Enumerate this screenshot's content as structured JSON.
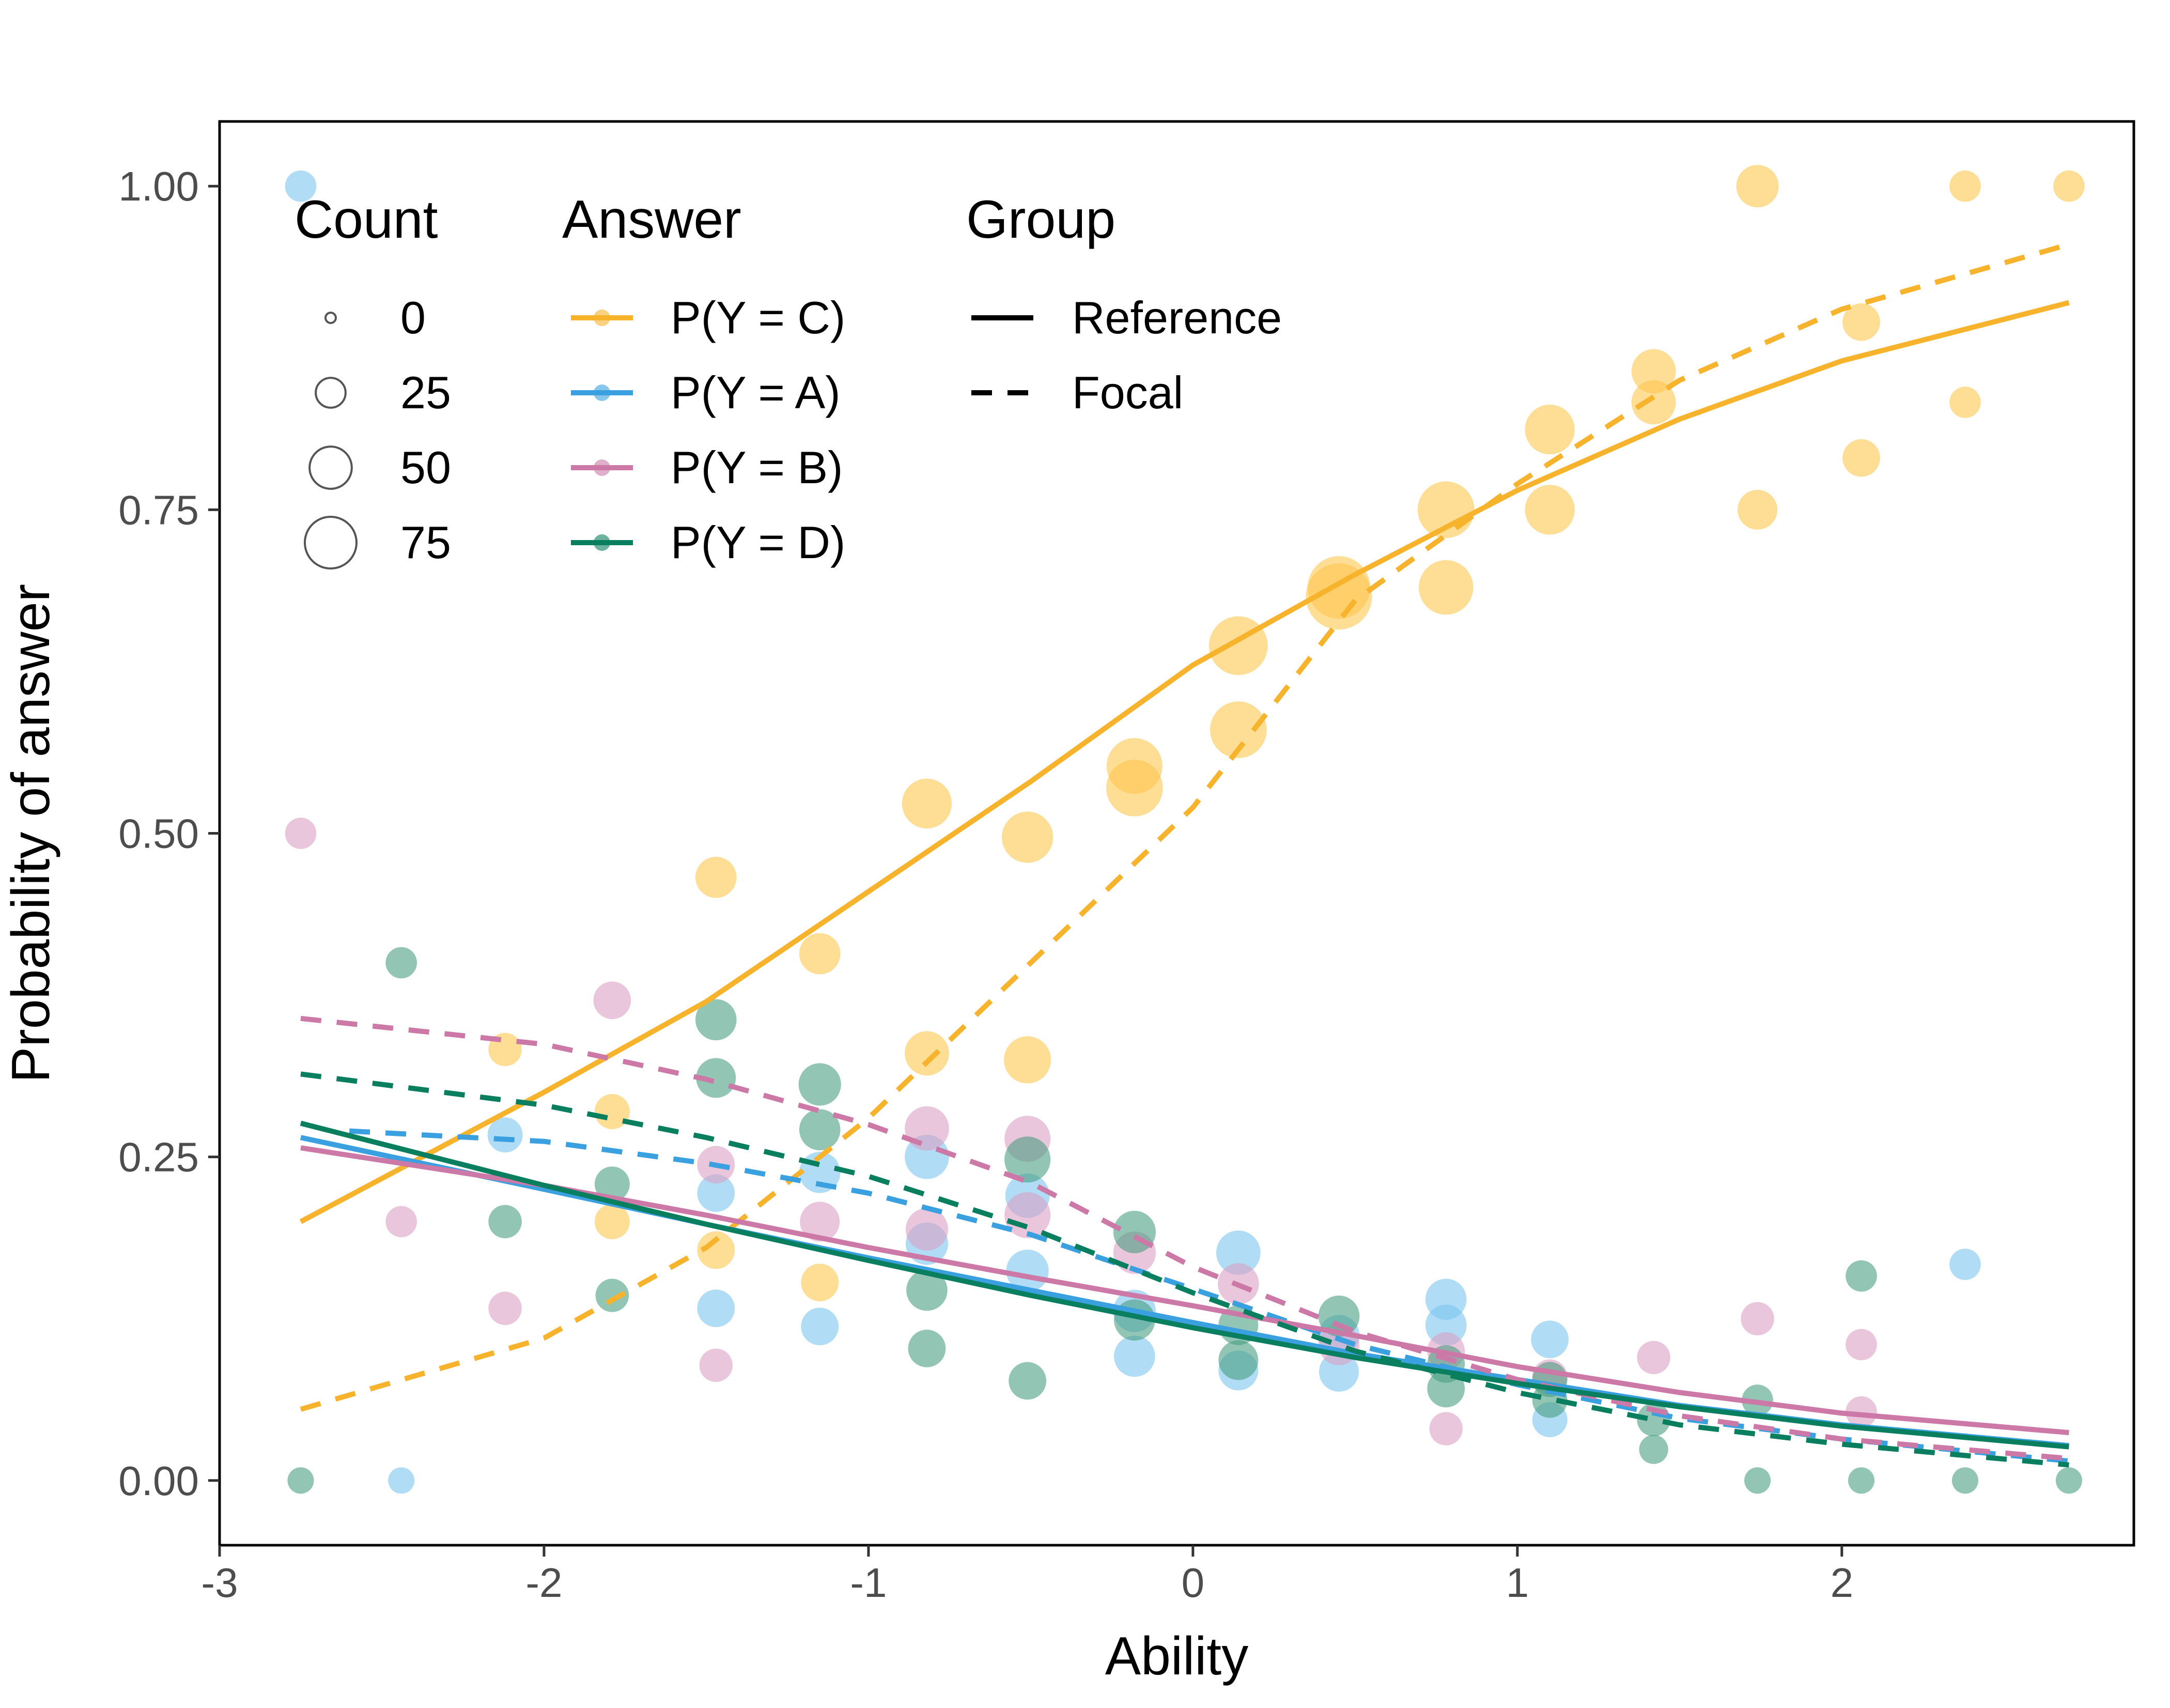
{
  "chart_data": {
    "type": "scatter",
    "xlabel": "Ability",
    "ylabel": "Probability of answer",
    "xlim": [
      -3.0,
      2.9
    ],
    "ylim": [
      -0.05,
      1.05
    ],
    "x_ticks": [
      "-3",
      "-2",
      "-1",
      "0",
      "1",
      "2"
    ],
    "x_tick_values": [
      -3,
      -2,
      -1,
      0,
      1,
      2
    ],
    "y_ticks": [
      "0.00",
      "0.25",
      "0.50",
      "0.75",
      "1.00"
    ],
    "y_tick_values": [
      0,
      0.25,
      0.5,
      0.75,
      1.0
    ],
    "grid": false,
    "legend": {
      "placement": "top-left",
      "count": {
        "title": "Count",
        "items": [
          {
            "label": "0",
            "value": 0
          },
          {
            "label": "25",
            "value": 25
          },
          {
            "label": "50",
            "value": 50
          },
          {
            "label": "75",
            "value": 75
          }
        ]
      },
      "answer": {
        "title": "Answer",
        "items": [
          {
            "label": "P(Y = C)",
            "color": "#F7B32B"
          },
          {
            "label": "P(Y = A)",
            "color": "#3AA0E0"
          },
          {
            "label": "P(Y = B)",
            "color": "#CC79A7"
          },
          {
            "label": "P(Y = D)",
            "color": "#0A7F5F"
          }
        ]
      },
      "group": {
        "title": "Group",
        "items": [
          {
            "label": "Reference",
            "dash": "solid"
          },
          {
            "label": "Focal",
            "dash": "dashed"
          }
        ]
      }
    },
    "series": [
      {
        "name": "P(Y = C)",
        "color": "#F7B32B",
        "point_color": "#FDC74E",
        "curves": {
          "Reference": [
            [
              -2.75,
              0.2
            ],
            [
              -2.0,
              0.3
            ],
            [
              -1.5,
              0.37
            ],
            [
              -1.0,
              0.455
            ],
            [
              -0.5,
              0.54
            ],
            [
              0.0,
              0.63
            ],
            [
              0.5,
              0.7
            ],
            [
              1.0,
              0.765
            ],
            [
              1.5,
              0.82
            ],
            [
              2.0,
              0.865
            ],
            [
              2.7,
              0.91
            ]
          ],
          "Focal": [
            [
              -2.75,
              0.055
            ],
            [
              -2.0,
              0.11
            ],
            [
              -1.5,
              0.18
            ],
            [
              -1.0,
              0.28
            ],
            [
              -0.5,
              0.4
            ],
            [
              0.0,
              0.52
            ],
            [
              0.5,
              0.68
            ],
            [
              1.0,
              0.77
            ],
            [
              1.5,
              0.85
            ],
            [
              2.0,
              0.905
            ],
            [
              2.7,
              0.955
            ]
          ]
        },
        "points": [
          {
            "x": 2.7,
            "y": 1.0,
            "count": 8
          },
          {
            "x": 2.38,
            "y": 1.0,
            "count": 8
          },
          {
            "x": 1.74,
            "y": 1.0,
            "count": 22
          },
          {
            "x": 2.06,
            "y": 0.895,
            "count": 15
          },
          {
            "x": 1.42,
            "y": 0.857,
            "count": 25
          },
          {
            "x": 1.42,
            "y": 0.833,
            "count": 25
          },
          {
            "x": 2.38,
            "y": 0.833,
            "count": 8
          },
          {
            "x": 1.1,
            "y": 0.812,
            "count": 35
          },
          {
            "x": 2.06,
            "y": 0.79,
            "count": 15
          },
          {
            "x": 0.78,
            "y": 0.75,
            "count": 50
          },
          {
            "x": 1.1,
            "y": 0.75,
            "count": 35
          },
          {
            "x": 1.74,
            "y": 0.75,
            "count": 18
          },
          {
            "x": 0.78,
            "y": 0.69,
            "count": 45
          },
          {
            "x": 0.45,
            "y": 0.69,
            "count": 65
          },
          {
            "x": 0.45,
            "y": 0.683,
            "count": 75
          },
          {
            "x": 0.14,
            "y": 0.645,
            "count": 55
          },
          {
            "x": 0.14,
            "y": 0.58,
            "count": 50
          },
          {
            "x": -0.18,
            "y": 0.552,
            "count": 48
          },
          {
            "x": -0.18,
            "y": 0.535,
            "count": 50
          },
          {
            "x": -0.82,
            "y": 0.523,
            "count": 35
          },
          {
            "x": -0.51,
            "y": 0.497,
            "count": 38
          },
          {
            "x": -1.47,
            "y": 0.466,
            "count": 20
          },
          {
            "x": -1.15,
            "y": 0.407,
            "count": 20
          },
          {
            "x": -1.79,
            "y": 0.285,
            "count": 12
          },
          {
            "x": -2.12,
            "y": 0.333,
            "count": 10
          },
          {
            "x": -0.82,
            "y": 0.33,
            "count": 25
          },
          {
            "x": -0.51,
            "y": 0.325,
            "count": 30
          },
          {
            "x": -1.79,
            "y": 0.2,
            "count": 12
          },
          {
            "x": -1.47,
            "y": 0.178,
            "count": 15
          },
          {
            "x": -1.15,
            "y": 0.153,
            "count": 15
          }
        ]
      },
      {
        "name": "P(Y = A)",
        "color": "#3AA0E0",
        "point_color": "#7BC4F0",
        "curves": {
          "Reference": [
            [
              -2.75,
              0.265
            ],
            [
              -2.0,
              0.225
            ],
            [
              -1.5,
              0.198
            ],
            [
              -1.0,
              0.172
            ],
            [
              -0.5,
              0.147
            ],
            [
              0.0,
              0.122
            ],
            [
              0.5,
              0.098
            ],
            [
              1.0,
              0.078
            ],
            [
              1.5,
              0.058
            ],
            [
              2.0,
              0.043
            ],
            [
              2.7,
              0.027
            ]
          ],
          "Focal": [
            [
              -2.6,
              0.27
            ],
            [
              -2.0,
              0.262
            ],
            [
              -1.5,
              0.245
            ],
            [
              -1.0,
              0.222
            ],
            [
              -0.5,
              0.19
            ],
            [
              0.0,
              0.148
            ],
            [
              0.5,
              0.105
            ],
            [
              1.0,
              0.074
            ],
            [
              1.5,
              0.048
            ],
            [
              2.0,
              0.032
            ],
            [
              2.7,
              0.015
            ]
          ]
        },
        "points": [
          {
            "x": -2.75,
            "y": 1.0,
            "count": 8
          },
          {
            "x": 2.38,
            "y": 0.167,
            "count": 8
          },
          {
            "x": -2.12,
            "y": 0.267,
            "count": 12
          },
          {
            "x": -1.15,
            "y": 0.238,
            "count": 20
          },
          {
            "x": -0.82,
            "y": 0.25,
            "count": 25
          },
          {
            "x": -1.47,
            "y": 0.222,
            "count": 15
          },
          {
            "x": -0.51,
            "y": 0.22,
            "count": 25
          },
          {
            "x": -0.82,
            "y": 0.183,
            "count": 22
          },
          {
            "x": 0.14,
            "y": 0.176,
            "count": 25
          },
          {
            "x": -0.51,
            "y": 0.162,
            "count": 22
          },
          {
            "x": 0.78,
            "y": 0.14,
            "count": 20
          },
          {
            "x": -1.47,
            "y": 0.133,
            "count": 15
          },
          {
            "x": -0.18,
            "y": 0.131,
            "count": 22
          },
          {
            "x": 0.78,
            "y": 0.12,
            "count": 20
          },
          {
            "x": -1.15,
            "y": 0.119,
            "count": 15
          },
          {
            "x": 1.1,
            "y": 0.109,
            "count": 15
          },
          {
            "x": 0.45,
            "y": 0.112,
            "count": 20
          },
          {
            "x": -0.18,
            "y": 0.096,
            "count": 20
          },
          {
            "x": 0.14,
            "y": 0.085,
            "count": 18
          },
          {
            "x": 0.45,
            "y": 0.084,
            "count": 18
          },
          {
            "x": 1.1,
            "y": 0.047,
            "count": 12
          },
          {
            "x": -2.44,
            "y": 0.0,
            "count": 4
          }
        ]
      },
      {
        "name": "P(Y = B)",
        "color": "#CC79A7",
        "point_color": "#DCA0C4",
        "curves": {
          "Reference": [
            [
              -2.75,
              0.257
            ],
            [
              -2.0,
              0.228
            ],
            [
              -1.5,
              0.205
            ],
            [
              -1.0,
              0.18
            ],
            [
              -0.5,
              0.157
            ],
            [
              0.0,
              0.135
            ],
            [
              0.5,
              0.112
            ],
            [
              1.0,
              0.088
            ],
            [
              1.5,
              0.068
            ],
            [
              2.0,
              0.052
            ],
            [
              2.7,
              0.037
            ]
          ],
          "Focal": [
            [
              -2.75,
              0.357
            ],
            [
              -2.0,
              0.337
            ],
            [
              -1.5,
              0.31
            ],
            [
              -1.0,
              0.275
            ],
            [
              -0.5,
              0.23
            ],
            [
              0.0,
              0.165
            ],
            [
              0.5,
              0.115
            ],
            [
              1.0,
              0.078
            ],
            [
              1.5,
              0.05
            ],
            [
              2.0,
              0.032
            ],
            [
              2.7,
              0.017
            ]
          ]
        },
        "points": [
          {
            "x": -2.75,
            "y": 0.5,
            "count": 8
          },
          {
            "x": -1.79,
            "y": 0.371,
            "count": 15
          },
          {
            "x": -0.82,
            "y": 0.272,
            "count": 25
          },
          {
            "x": -0.51,
            "y": 0.264,
            "count": 28
          },
          {
            "x": -1.47,
            "y": 0.244,
            "count": 15
          },
          {
            "x": -0.51,
            "y": 0.205,
            "count": 28
          },
          {
            "x": -2.44,
            "y": 0.2,
            "count": 8
          },
          {
            "x": -1.15,
            "y": 0.2,
            "count": 18
          },
          {
            "x": -0.82,
            "y": 0.194,
            "count": 22
          },
          {
            "x": -0.18,
            "y": 0.176,
            "count": 22
          },
          {
            "x": 0.14,
            "y": 0.152,
            "count": 20
          },
          {
            "x": -2.12,
            "y": 0.133,
            "count": 10
          },
          {
            "x": 1.74,
            "y": 0.125,
            "count": 10
          },
          {
            "x": 0.45,
            "y": 0.105,
            "count": 20
          },
          {
            "x": 0.78,
            "y": 0.1,
            "count": 15
          },
          {
            "x": 2.06,
            "y": 0.105,
            "count": 8
          },
          {
            "x": 1.42,
            "y": 0.095,
            "count": 10
          },
          {
            "x": -1.47,
            "y": 0.089,
            "count": 10
          },
          {
            "x": 1.1,
            "y": 0.08,
            "count": 12
          },
          {
            "x": 2.06,
            "y": 0.053,
            "count": 8
          },
          {
            "x": 0.78,
            "y": 0.04,
            "count": 10
          }
        ]
      },
      {
        "name": "P(Y = D)",
        "color": "#0A7F5F",
        "point_color": "#4A9E80",
        "curves": {
          "Reference": [
            [
              -2.75,
              0.276
            ],
            [
              -2.0,
              0.228
            ],
            [
              -1.5,
              0.198
            ],
            [
              -1.0,
              0.17
            ],
            [
              -0.5,
              0.143
            ],
            [
              0.0,
              0.118
            ],
            [
              0.5,
              0.095
            ],
            [
              1.0,
              0.075
            ],
            [
              1.5,
              0.057
            ],
            [
              2.0,
              0.042
            ],
            [
              2.7,
              0.026
            ]
          ],
          "Focal": [
            [
              -2.75,
              0.314
            ],
            [
              -2.0,
              0.29
            ],
            [
              -1.5,
              0.265
            ],
            [
              -1.0,
              0.235
            ],
            [
              -0.5,
              0.195
            ],
            [
              0.0,
              0.145
            ],
            [
              0.5,
              0.1
            ],
            [
              1.0,
              0.068
            ],
            [
              1.5,
              0.043
            ],
            [
              2.0,
              0.028
            ],
            [
              2.7,
              0.012
            ]
          ]
        },
        "points": [
          {
            "x": -2.44,
            "y": 0.4,
            "count": 8
          },
          {
            "x": -1.47,
            "y": 0.356,
            "count": 20
          },
          {
            "x": -1.47,
            "y": 0.311,
            "count": 18
          },
          {
            "x": -1.15,
            "y": 0.306,
            "count": 22
          },
          {
            "x": -1.15,
            "y": 0.271,
            "count": 20
          },
          {
            "x": -0.51,
            "y": 0.248,
            "count": 28
          },
          {
            "x": -1.79,
            "y": 0.229,
            "count": 12
          },
          {
            "x": -2.12,
            "y": 0.2,
            "count": 10
          },
          {
            "x": -0.18,
            "y": 0.192,
            "count": 22
          },
          {
            "x": 2.06,
            "y": 0.158,
            "count": 8
          },
          {
            "x": -0.82,
            "y": 0.147,
            "count": 20
          },
          {
            "x": -1.79,
            "y": 0.143,
            "count": 10
          },
          {
            "x": 0.45,
            "y": 0.127,
            "count": 20
          },
          {
            "x": -0.18,
            "y": 0.124,
            "count": 20
          },
          {
            "x": 0.14,
            "y": 0.12,
            "count": 18
          },
          {
            "x": -0.82,
            "y": 0.102,
            "count": 15
          },
          {
            "x": 0.14,
            "y": 0.093,
            "count": 18
          },
          {
            "x": 0.78,
            "y": 0.09,
            "count": 15
          },
          {
            "x": 1.1,
            "y": 0.078,
            "count": 12
          },
          {
            "x": -0.51,
            "y": 0.077,
            "count": 15
          },
          {
            "x": 0.78,
            "y": 0.071,
            "count": 15
          },
          {
            "x": 1.1,
            "y": 0.062,
            "count": 12
          },
          {
            "x": 1.74,
            "y": 0.062,
            "count": 8
          },
          {
            "x": 1.42,
            "y": 0.047,
            "count": 10
          },
          {
            "x": 1.42,
            "y": 0.024,
            "count": 6
          },
          {
            "x": -2.75,
            "y": 0.0,
            "count": 4
          },
          {
            "x": 1.74,
            "y": 0.0,
            "count": 4
          },
          {
            "x": 2.06,
            "y": 0.0,
            "count": 4
          },
          {
            "x": 2.38,
            "y": 0.0,
            "count": 4
          },
          {
            "x": 2.7,
            "y": 0.0,
            "count": 4
          }
        ]
      }
    ]
  }
}
